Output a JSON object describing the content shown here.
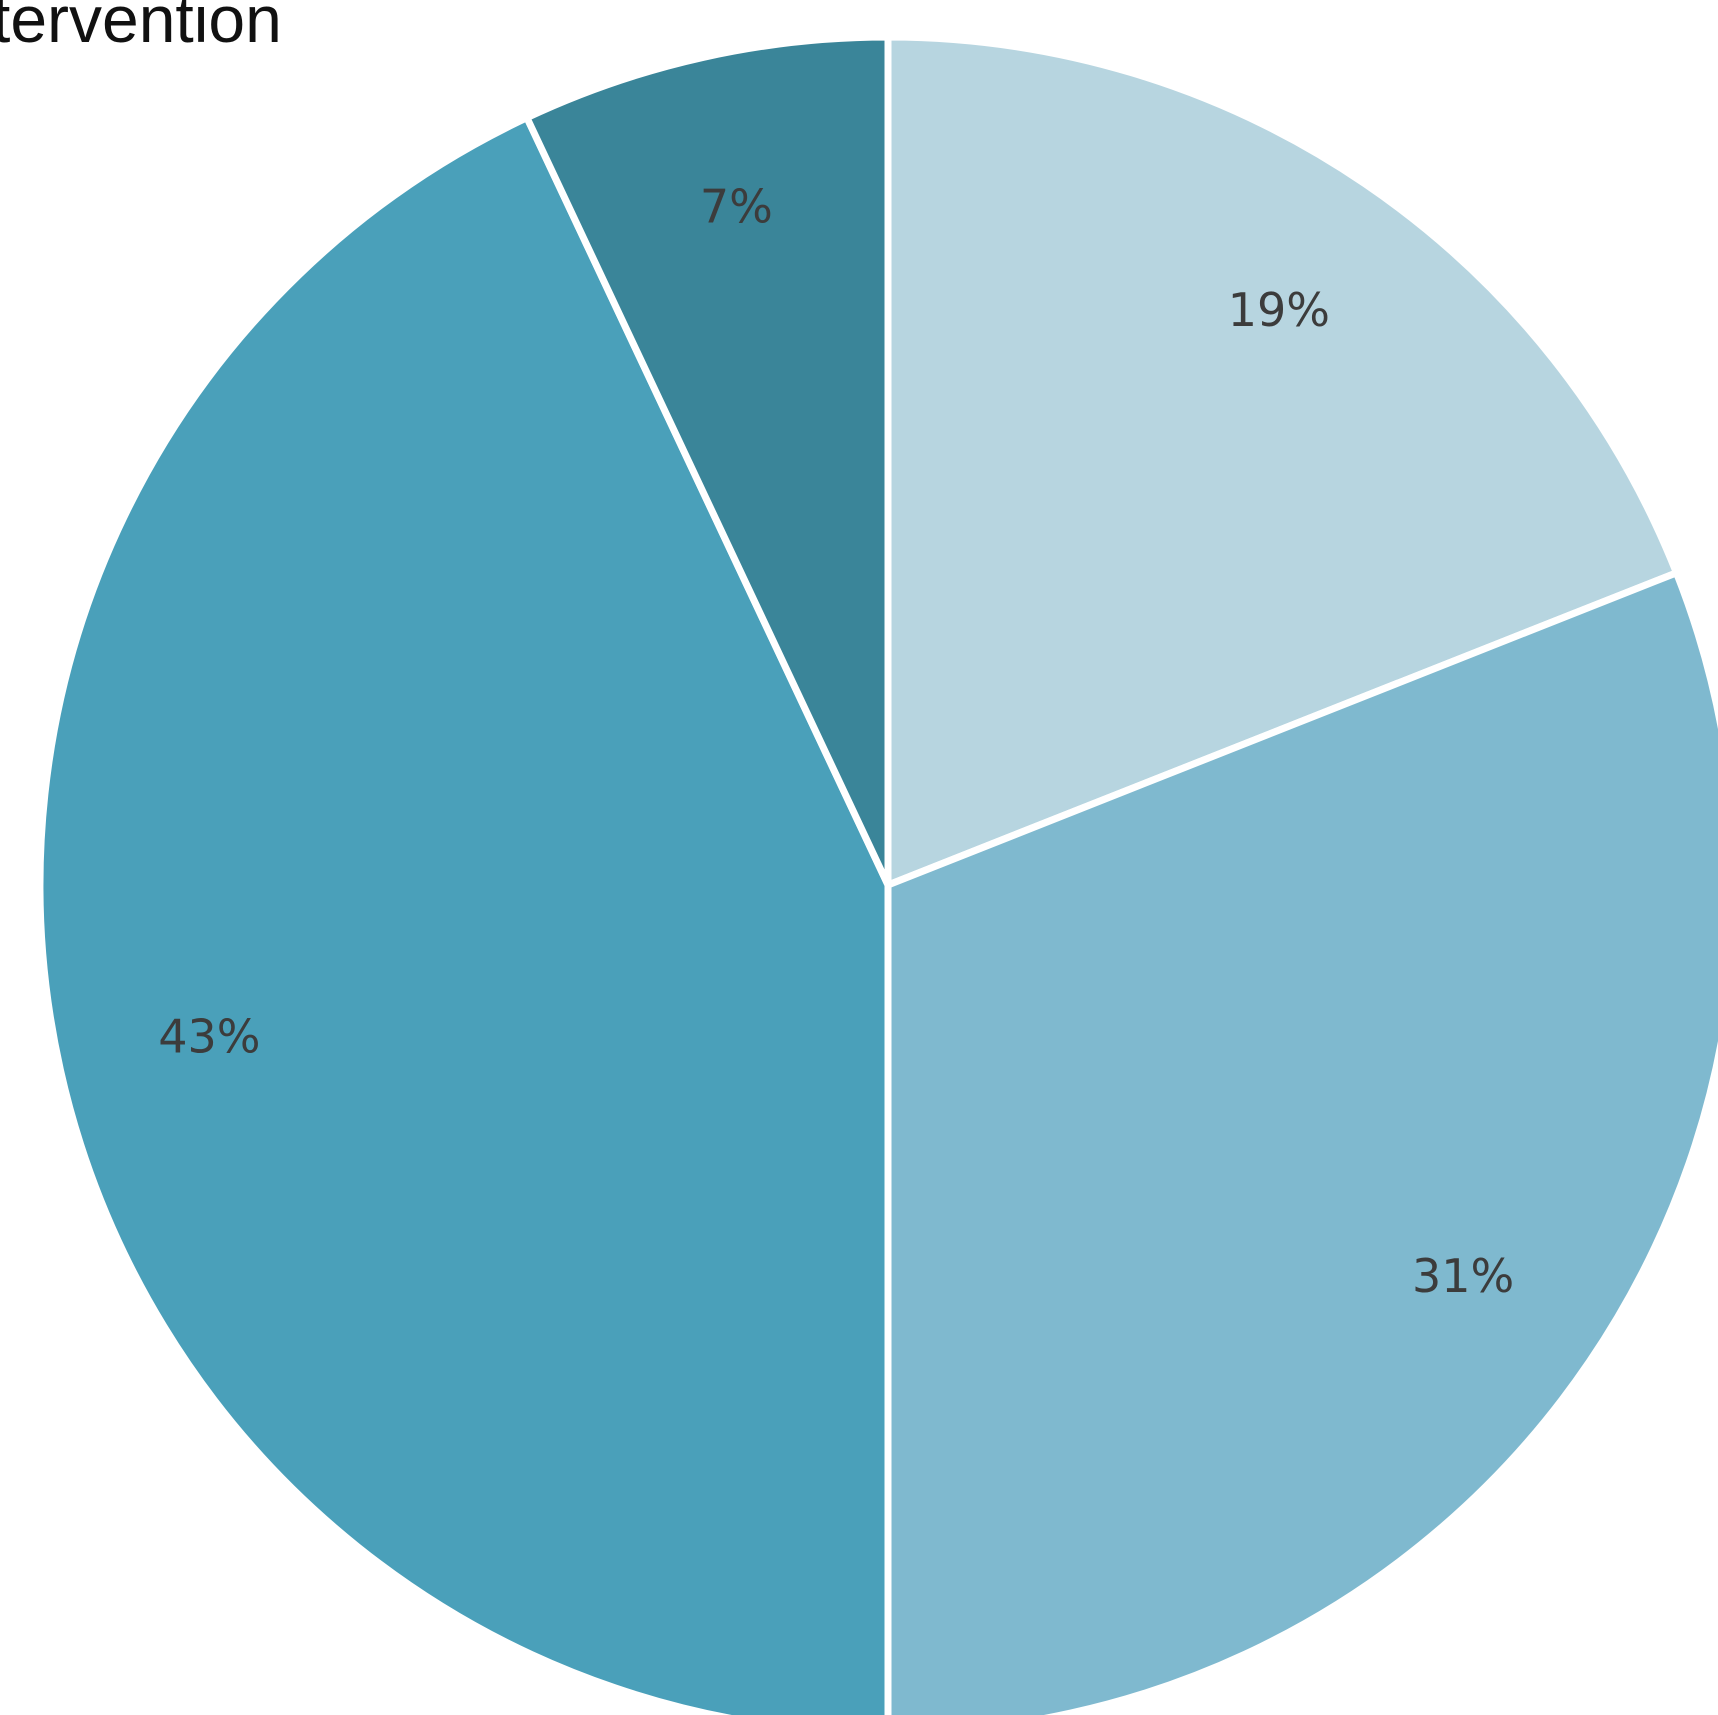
{
  "title": "tervention",
  "chart_data": {
    "type": "pie",
    "title": "tervention",
    "start_angle": "12 o'clock",
    "direction": "clockwise",
    "slices": [
      {
        "value": 19,
        "label": "19%",
        "color": "#b7d5e0"
      },
      {
        "value": 31,
        "label": "31%",
        "color": "#7fb9cf"
      },
      {
        "value": 43,
        "label": "43%",
        "color": "#4aa0ba"
      },
      {
        "value": 7,
        "label": "7%",
        "color": "#3a8599"
      }
    ],
    "separator_color": "#ffffff"
  }
}
